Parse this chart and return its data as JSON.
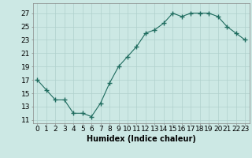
{
  "x": [
    0,
    1,
    2,
    3,
    4,
    5,
    6,
    7,
    8,
    9,
    10,
    11,
    12,
    13,
    14,
    15,
    16,
    17,
    18,
    19,
    20,
    21,
    22,
    23
  ],
  "y": [
    17.0,
    15.5,
    14.0,
    14.0,
    12.0,
    12.0,
    11.5,
    13.5,
    16.5,
    19.0,
    20.5,
    22.0,
    24.0,
    24.5,
    25.5,
    27.0,
    26.5,
    27.0,
    27.0,
    27.0,
    26.5,
    25.0,
    24.0,
    23.0
  ],
  "line_color": "#1e6b5e",
  "marker": "+",
  "marker_size": 4,
  "bg_color": "#cce8e4",
  "grid_color": "#b0d0cc",
  "xlabel": "Humidex (Indice chaleur)",
  "xlim": [
    -0.5,
    23.5
  ],
  "ylim": [
    10.5,
    28.5
  ],
  "yticks": [
    11,
    13,
    15,
    17,
    19,
    21,
    23,
    25,
    27
  ],
  "xtick_labels": [
    "0",
    "1",
    "2",
    "3",
    "4",
    "5",
    "6",
    "7",
    "8",
    "9",
    "10",
    "11",
    "12",
    "13",
    "14",
    "15",
    "16",
    "17",
    "18",
    "19",
    "20",
    "21",
    "22",
    "23"
  ],
  "xlabel_fontsize": 7,
  "tick_fontsize": 6.5
}
